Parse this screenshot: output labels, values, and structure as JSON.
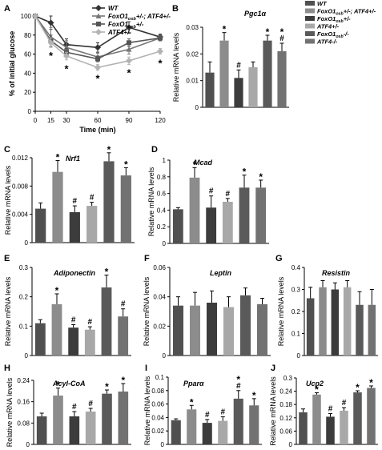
{
  "colors": {
    "WT": "#505050",
    "DH": "#8c8c8c",
    "FH": "#3c3c3c",
    "AH": "#a8a8a8",
    "FK": "#5a5a5a",
    "AK": "#727272",
    "line_WT": "#333333",
    "line_DH": "#777777",
    "line_FH": "#555555",
    "line_AH": "#b3b3b3"
  },
  "legend_B": [
    {
      "key": "WT",
      "label": "WT",
      "sub": "",
      "suffix": ""
    },
    {
      "key": "DH",
      "label": "FoxO1",
      "sub": "osb",
      "suffix": "+/-; ATF4+/-"
    },
    {
      "key": "FH",
      "label": "FoxO1",
      "sub": "osb",
      "suffix": "+/-"
    },
    {
      "key": "AH",
      "label": "ATF4+/-",
      "sub": "",
      "suffix": ""
    },
    {
      "key": "FK",
      "label": "FoxO1",
      "sub": "osb",
      "suffix": "-/-"
    },
    {
      "key": "AK",
      "label": "ATF4-/-",
      "sub": "",
      "suffix": ""
    }
  ],
  "chart_data": [
    {
      "panel": "A",
      "type": "line",
      "xlabel": "Time (min)",
      "ylabel": "% of initial glucose",
      "x": [
        0,
        15,
        30,
        60,
        90,
        120
      ],
      "xlim": [
        0,
        120
      ],
      "ylim": [
        0,
        100
      ],
      "yticks": [
        0,
        20,
        40,
        60,
        80,
        100
      ],
      "legend": [
        {
          "key": "WT",
          "label": "WT",
          "sub": "",
          "suffix": "",
          "marker": "diamond"
        },
        {
          "key": "DH",
          "label": "FoxO1",
          "sub": "osb",
          "suffix": "+/-; ATF4+/-",
          "marker": "triangle"
        },
        {
          "key": "FH",
          "label": "FoxO1",
          "sub": "osb",
          "suffix": "+/-",
          "marker": "square"
        },
        {
          "key": "AH",
          "label": "ATF4+/-",
          "sub": "",
          "suffix": "",
          "marker": "diamond"
        }
      ],
      "series": [
        {
          "key": "WT",
          "values": [
            100,
            93,
            70,
            67,
            88,
            78
          ],
          "err": [
            2,
            7,
            6,
            5,
            6,
            3
          ]
        },
        {
          "key": "DH",
          "values": [
            100,
            78,
            67,
            57,
            65,
            77
          ],
          "err": [
            2,
            10,
            7,
            4,
            5,
            3
          ]
        },
        {
          "key": "FH",
          "values": [
            100,
            74,
            62,
            55,
            72,
            77
          ],
          "err": [
            2,
            6,
            4,
            3,
            4,
            3
          ]
        },
        {
          "key": "AH",
          "values": [
            100,
            72,
            58,
            46,
            53,
            63
          ],
          "err": [
            2,
            5,
            4,
            3,
            4,
            3
          ]
        }
      ],
      "stars": [
        {
          "x": 15,
          "y": 58
        },
        {
          "x": 30,
          "y": 44
        },
        {
          "x": 60,
          "y": 34
        },
        {
          "x": 90,
          "y": 40
        },
        {
          "x": 120,
          "y": 50
        }
      ]
    },
    {
      "panel": "B",
      "type": "bar",
      "title": "Pgc1α",
      "ylabel": "Relative mRNA levels",
      "ylim": [
        0,
        0.03
      ],
      "yticks": [
        "0",
        "0.01",
        "0.02",
        "0.03"
      ],
      "values": [
        0.013,
        0.025,
        0.011,
        0.015,
        0.025,
        0.021
      ],
      "errors": [
        0.004,
        0.003,
        0.003,
        0.002,
        0.002,
        0.003
      ],
      "marks": [
        "",
        "*",
        "#",
        "",
        "*",
        "*#"
      ]
    },
    {
      "panel": "C",
      "type": "bar",
      "title": "Nrf1",
      "ylabel": "Relative mRNA levels",
      "ylim": [
        0,
        0.012
      ],
      "yticks": [
        "0",
        "0.004",
        "0.008",
        "0.012"
      ],
      "values": [
        0.0048,
        0.01,
        0.0043,
        0.0052,
        0.0115,
        0.0095
      ],
      "errors": [
        0.0008,
        0.0016,
        0.0009,
        0.0005,
        0.0012,
        0.0011
      ],
      "marks": [
        "",
        "*",
        "#",
        "#",
        "*",
        "*"
      ]
    },
    {
      "panel": "D",
      "type": "bar",
      "title": "Mcad",
      "ylabel": "Relative mRNA levels",
      "ylim": [
        0,
        1
      ],
      "yticks": [
        "0",
        "0.2",
        "0.4",
        "0.6",
        "0.8",
        "1"
      ],
      "values": [
        0.41,
        0.79,
        0.43,
        0.5,
        0.67,
        0.67
      ],
      "errors": [
        0.02,
        0.12,
        0.14,
        0.04,
        0.15,
        0.09
      ],
      "marks": [
        "",
        "*",
        "#",
        "#",
        "*",
        "*"
      ]
    },
    {
      "panel": "E",
      "type": "bar",
      "title": "Adiponectin",
      "ylabel": "Relative mRNA levels",
      "ylim": [
        0,
        0.3
      ],
      "yticks": [
        "0",
        "0.1",
        "0.2",
        "0.3"
      ],
      "values": [
        0.11,
        0.175,
        0.095,
        0.088,
        0.232,
        0.133
      ],
      "errors": [
        0.012,
        0.035,
        0.01,
        0.01,
        0.042,
        0.026
      ],
      "marks": [
        "",
        "*",
        "#",
        "#",
        "*",
        "#"
      ]
    },
    {
      "panel": "F",
      "type": "bar",
      "title": "Leptin",
      "ylabel": "Relative mRNA levels",
      "ylim": [
        0,
        0.06
      ],
      "yticks": [
        "0",
        "0.02",
        "0.04",
        "0.06"
      ],
      "values": [
        0.034,
        0.034,
        0.036,
        0.033,
        0.041,
        0.035
      ],
      "errors": [
        0.006,
        0.009,
        0.008,
        0.007,
        0.005,
        0.004
      ],
      "marks": [
        "",
        "",
        "",
        "",
        "",
        ""
      ]
    },
    {
      "panel": "G",
      "type": "bar",
      "title": "Resistin",
      "ylabel": "Relative mRNA levels",
      "ylim": [
        0,
        0.4
      ],
      "yticks": [
        "0",
        "0.1",
        "0.2",
        "0.3",
        "0.4"
      ],
      "values": [
        0.26,
        0.31,
        0.3,
        0.31,
        0.23,
        0.23
      ],
      "errors": [
        0.05,
        0.03,
        0.03,
        0.03,
        0.06,
        0.07
      ],
      "marks": [
        "",
        "",
        "",
        "",
        "",
        ""
      ]
    },
    {
      "panel": "H",
      "type": "bar",
      "title": "Acyl-CoA",
      "ylabel": "Relative mRNA levels",
      "ylim": [
        0,
        0.24
      ],
      "yticks": [
        "0",
        "0.08",
        "0.16",
        "0.24"
      ],
      "values": [
        0.105,
        0.183,
        0.105,
        0.123,
        0.19,
        0.198
      ],
      "errors": [
        0.012,
        0.028,
        0.018,
        0.012,
        0.014,
        0.03
      ],
      "marks": [
        "",
        "*",
        "#",
        "#",
        "*",
        "*"
      ]
    },
    {
      "panel": "I",
      "type": "bar",
      "title": "Pparα",
      "ylabel": "Relative mRNA levels",
      "ylim": [
        0,
        0.1
      ],
      "yticks": [
        "0",
        "0.02",
        "0.04",
        "0.06",
        "0.08",
        "0.1"
      ],
      "values": [
        0.036,
        0.052,
        0.032,
        0.035,
        0.068,
        0.058
      ],
      "errors": [
        0.002,
        0.006,
        0.005,
        0.006,
        0.012,
        0.01
      ],
      "marks": [
        "",
        "*",
        "#",
        "#",
        "*#",
        "*"
      ]
    },
    {
      "panel": "J",
      "type": "bar",
      "title": "Ucp2",
      "ylabel": "Relative mRNA levels",
      "ylim": [
        0,
        0.3
      ],
      "yticks": [
        "0",
        "0.06",
        "0.12",
        "0.18",
        "0.24",
        "0.3"
      ],
      "values": [
        0.145,
        0.225,
        0.125,
        0.152,
        0.235,
        0.255
      ],
      "errors": [
        0.015,
        0.008,
        0.014,
        0.014,
        0.007,
        0.009
      ],
      "marks": [
        "",
        "*",
        "#",
        "#",
        "*",
        "*"
      ]
    }
  ]
}
